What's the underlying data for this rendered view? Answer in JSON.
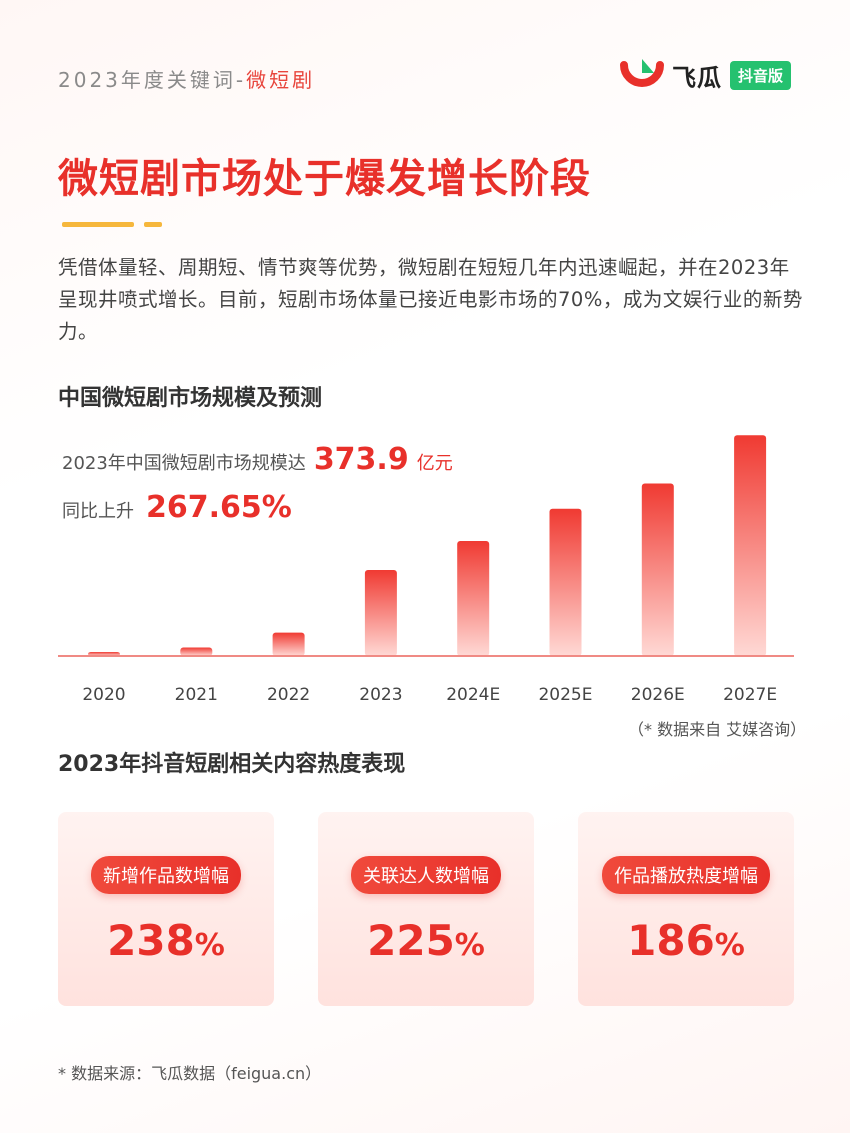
{
  "header": {
    "tag_prefix": "2023年度关键词-",
    "tag_accent": "微短剧",
    "logo_text": "飞瓜",
    "logo_badge": "抖音版"
  },
  "title": "微短剧市场处于爆发增长阶段",
  "intro": "凭借体量轻、周期短、情节爽等优势，微短剧在短短几年内迅速崛起，并在2023年呈现井喷式增长。目前，短剧市场体量已接近电影市场的70%，成为文娱行业的新势力。",
  "chart_section_title": "中国微短剧市场规模及预测",
  "highlight": {
    "line1_prefix": "2023年中国微短剧市场规模达",
    "line1_value": "373.9",
    "line1_unit": "亿元",
    "line2_prefix": "同比上升",
    "line2_value": "267.65%"
  },
  "chart_source": "（* 数据来自 艾媒咨询）",
  "chart_data": {
    "type": "bar",
    "title": "中国微短剧市场规模及预测",
    "categories": [
      "2020",
      "2021",
      "2022",
      "2023",
      "2024E",
      "2025E",
      "2026E",
      "2027E"
    ],
    "values": [
      9.4,
      36.8,
      101.7,
      373.9,
      500,
      640,
      750,
      960
    ],
    "value_unit": "亿元",
    "ylim": [
      0,
      1000
    ],
    "grid": false,
    "xlabel": "",
    "ylabel": "",
    "colors": {
      "bar_top": "#f03a32",
      "bar_bottom": "#ffd9d5",
      "axis": "#f08a84"
    }
  },
  "section2_title": "2023年抖音短剧相关内容热度表现",
  "cards": [
    {
      "label": "新增作品数增幅",
      "value": "238",
      "unit": "%"
    },
    {
      "label": "关联达人数增幅",
      "value": "225",
      "unit": "%"
    },
    {
      "label": "作品播放热度增幅",
      "value": "186",
      "unit": "%"
    }
  ],
  "footer": "* 数据来源：飞瓜数据（feigua.cn）",
  "colors": {
    "accent": "#e8302a",
    "underline": "#f6b73c",
    "badge": "#25c16f"
  }
}
